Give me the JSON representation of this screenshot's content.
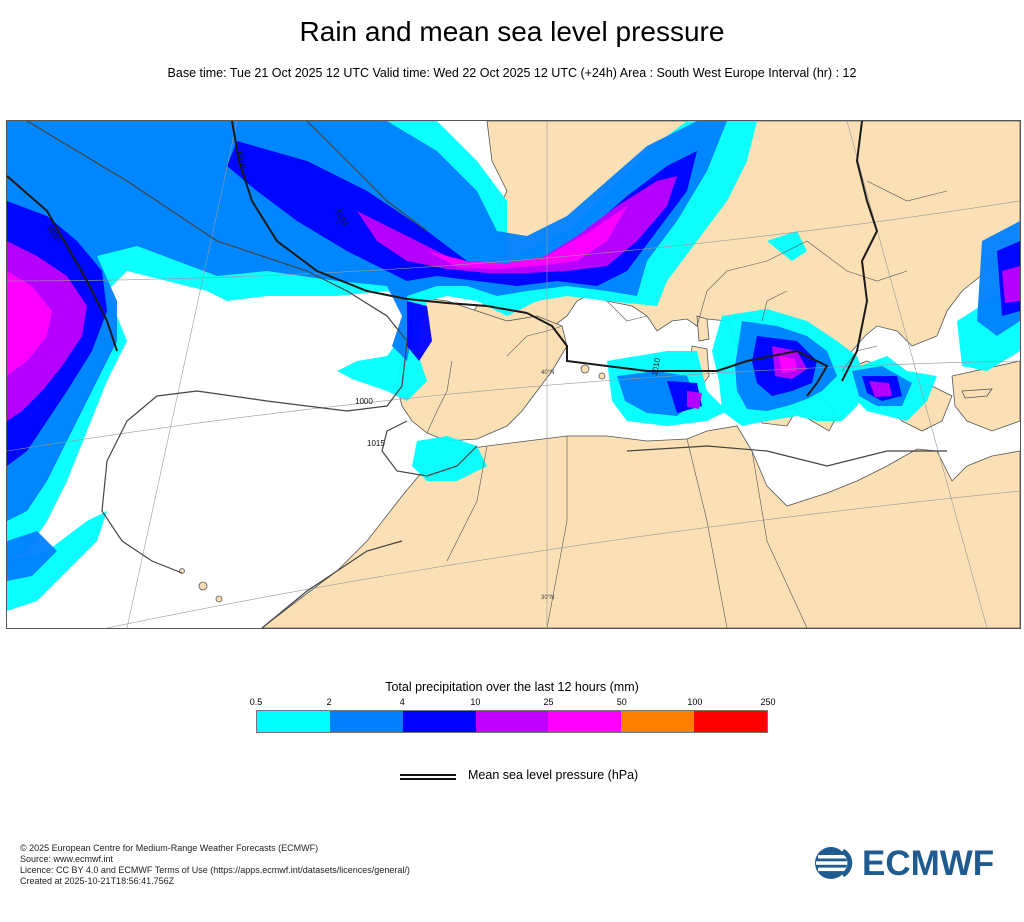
{
  "header": {
    "title": "Rain and mean sea level pressure",
    "subtitle": "Base time: Tue 21 Oct 2025 12 UTC Valid time: Wed 22 Oct 2025 12 UTC (+24h) Area : South West Europe Interval (hr) : 12"
  },
  "map": {
    "isobar_labels": [
      "1010",
      "1010",
      "1010",
      "1010",
      "1000",
      "1015"
    ],
    "graticule_labels": [
      "40°N",
      "30°N"
    ],
    "colors": {
      "land": "#fae0b4",
      "sea": "#ffffff",
      "isobar": "#1a1a1a",
      "border": "#444444"
    }
  },
  "legend": {
    "title": "Total precipitation over the last 12 hours (mm)",
    "ticks": [
      "0.5",
      "2",
      "4",
      "10",
      "25",
      "50",
      "100",
      "250"
    ],
    "colors": [
      "#00ffff",
      "#0080ff",
      "#0000ff",
      "#c000ff",
      "#ff00ff",
      "#ff8000",
      "#ff0000"
    ],
    "pressure_label": "Mean sea level pressure (hPa)"
  },
  "footer": {
    "lines": [
      "© 2025 European Centre for Medium-Range Weather Forecasts (ECMWF)",
      "Source: www.ecmwf.int",
      "Licence: CC BY 4.0 and ECMWF Terms of Use (https://apps.ecmwf.int/datasets/licences/general/)",
      "Created at 2025-10-21T18:56:41.756Z"
    ]
  },
  "logo": {
    "text": "ECMWF",
    "color": "#1f5b8e"
  }
}
